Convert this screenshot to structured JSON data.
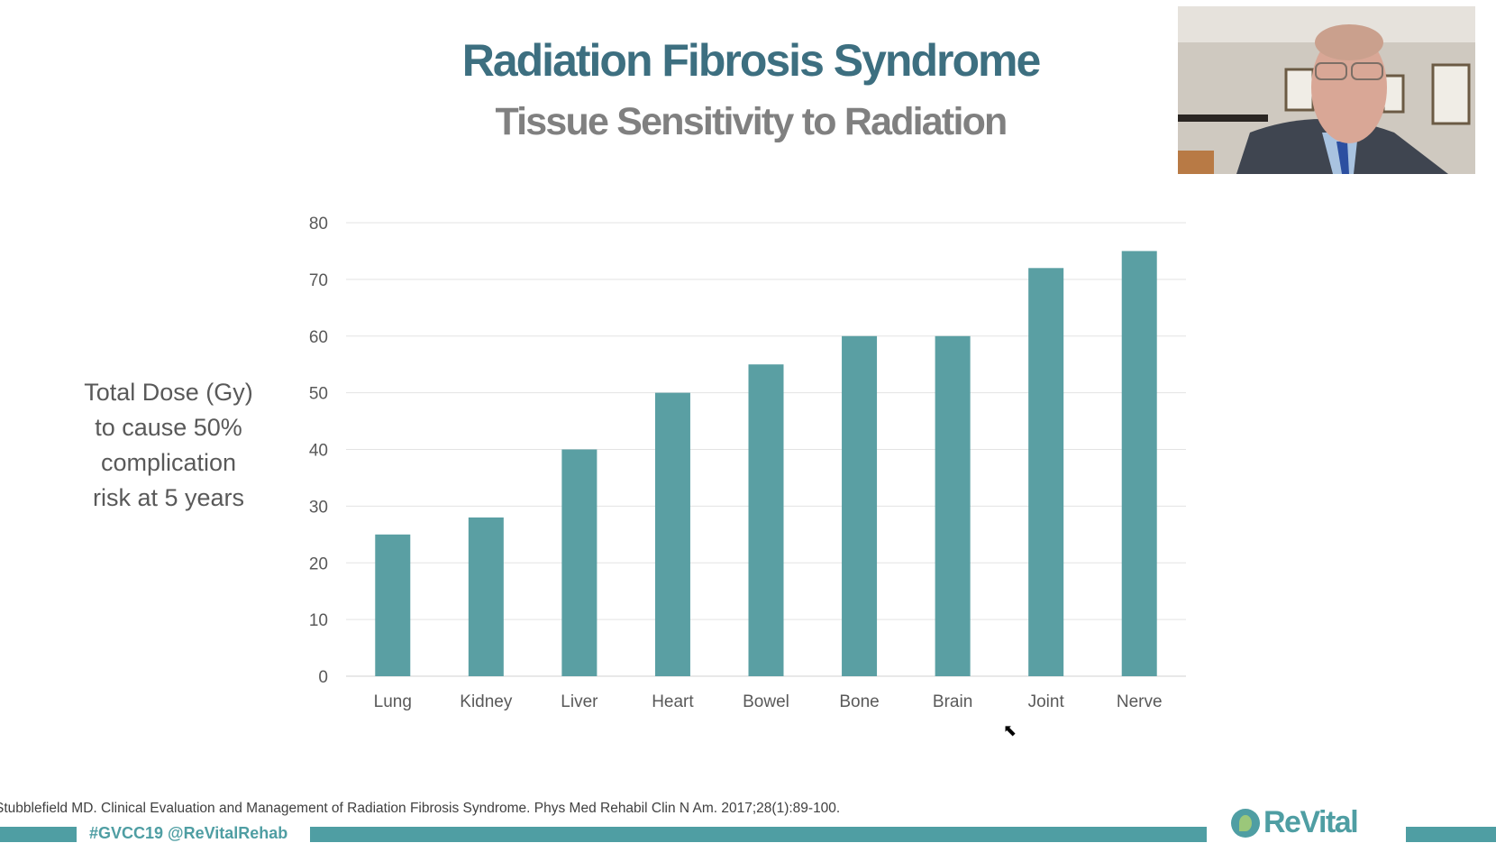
{
  "slide": {
    "title": "Radiation Fibrosis Syndrome",
    "subtitle": "Tissue Sensitivity to Radiation",
    "citation": "Stubblefield MD. Clinical Evaluation and Management of Radiation Fibrosis Syndrome. Phys Med Rehabil Clin N Am. 2017;28(1):89-100.",
    "hashtag": "#GVCC19  @ReVitalRehab",
    "logo_text": "ReVital"
  },
  "colors": {
    "bar": "#5a9fa3",
    "title": "#3d6f80",
    "subtitle": "#808080",
    "band": "#4f9ea3"
  },
  "chart_data": {
    "type": "bar",
    "title": "Tissue Sensitivity to Radiation",
    "ylabel_lines": [
      "Total Dose (Gy)",
      "to cause 50%",
      "complication",
      "risk at 5 years"
    ],
    "xlabel": "",
    "categories": [
      "Lung",
      "Kidney",
      "Liver",
      "Heart",
      "Bowel",
      "Bone",
      "Brain",
      "Joint",
      "Nerve"
    ],
    "values": [
      25,
      28,
      40,
      50,
      55,
      60,
      60,
      72,
      75
    ],
    "ylim": [
      0,
      80
    ],
    "yticks": [
      "0",
      "10",
      "20",
      "30",
      "40",
      "50",
      "60",
      "70",
      "80"
    ],
    "grid": true,
    "legend": "none"
  }
}
